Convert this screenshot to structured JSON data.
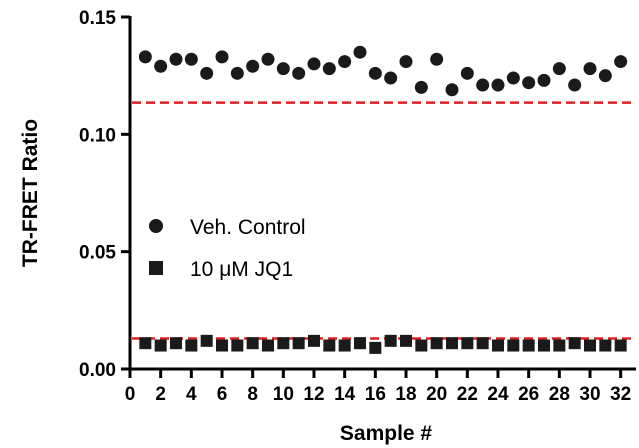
{
  "chart_data": {
    "type": "scatter",
    "xlabel": "Sample #",
    "ylabel": "TR-FRET Ratio",
    "xlim": [
      0,
      33
    ],
    "ylim": [
      0,
      0.15
    ],
    "xticks": [
      0,
      2,
      4,
      6,
      8,
      10,
      12,
      14,
      16,
      18,
      20,
      22,
      24,
      26,
      28,
      30,
      32
    ],
    "xtick_labels": [
      "0",
      "2",
      "4",
      "6",
      "8",
      "10",
      "12",
      "14",
      "16",
      "18",
      "20",
      "22",
      "24",
      "26",
      "28",
      "30",
      "32"
    ],
    "yticks": [
      0,
      0.05,
      0.1,
      0.15
    ],
    "ytick_labels": [
      "0.00",
      "0.05",
      "0.10",
      "0.15"
    ],
    "grid": false,
    "legend_position": "center-left",
    "x": [
      1,
      2,
      3,
      4,
      5,
      6,
      7,
      8,
      9,
      10,
      11,
      12,
      13,
      14,
      15,
      16,
      17,
      18,
      19,
      20,
      21,
      22,
      23,
      24,
      25,
      26,
      27,
      28,
      29,
      30,
      31,
      32
    ],
    "series": [
      {
        "name": "Veh. Control",
        "legend_label": "Veh. Control",
        "marker": "circle",
        "color": "#1a1a1a",
        "values": [
          0.133,
          0.129,
          0.132,
          0.132,
          0.126,
          0.133,
          0.126,
          0.129,
          0.132,
          0.128,
          0.126,
          0.13,
          0.128,
          0.131,
          0.135,
          0.126,
          0.124,
          0.131,
          0.12,
          0.132,
          0.119,
          0.126,
          0.121,
          0.121,
          0.124,
          0.122,
          0.123,
          0.128,
          0.121,
          0.128,
          0.125,
          0.131
        ]
      },
      {
        "name": "10 μM JQ1",
        "legend_label": "10 μM JQ1",
        "marker": "square",
        "color": "#1a1a1a",
        "values": [
          0.011,
          0.01,
          0.011,
          0.01,
          0.012,
          0.01,
          0.01,
          0.011,
          0.01,
          0.011,
          0.011,
          0.012,
          0.01,
          0.01,
          0.011,
          0.009,
          0.012,
          0.012,
          0.01,
          0.011,
          0.011,
          0.011,
          0.011,
          0.01,
          0.01,
          0.01,
          0.01,
          0.01,
          0.011,
          0.01,
          0.01,
          0.01
        ]
      }
    ],
    "reference_lines": [
      {
        "y": 0.1135,
        "color": "#e02020",
        "style": "dashed"
      },
      {
        "y": 0.013,
        "color": "#e02020",
        "style": "dashed"
      }
    ]
  }
}
